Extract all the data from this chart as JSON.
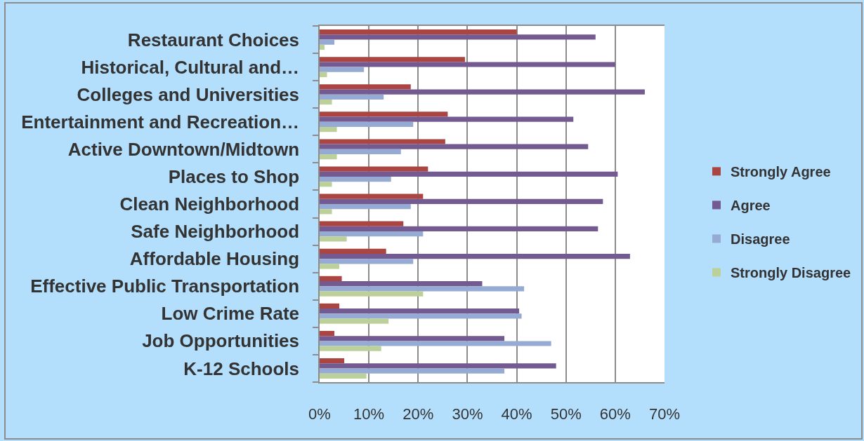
{
  "chart_data": {
    "type": "bar",
    "orientation": "horizontal",
    "categories": [
      "Restaurant Choices",
      "Historical, Cultural and…",
      "Colleges and Universities",
      "Entertainment and Recreation…",
      "Active Downtown/Midtown",
      "Places to Shop",
      "Clean Neighborhood",
      "Safe Neighborhood",
      "Affordable Housing",
      "Effective Public Transportation",
      "Low Crime Rate",
      "Job Opportunities",
      "K-12 Schools"
    ],
    "series": [
      {
        "name": "Strongly Agree",
        "color": "#ab4542",
        "values": [
          40,
          29.5,
          18.5,
          26,
          25.5,
          22,
          21,
          17,
          13.5,
          4.5,
          4,
          3,
          5
        ]
      },
      {
        "name": "Agree",
        "color": "#735a91",
        "values": [
          56,
          60,
          66,
          51.5,
          54.5,
          60.5,
          57.5,
          56.5,
          63,
          33,
          40.5,
          37.5,
          48
        ]
      },
      {
        "name": "Disagree",
        "color": "#96abd4",
        "values": [
          3,
          9,
          13,
          19,
          16.5,
          14.5,
          18.5,
          21,
          19,
          41.5,
          41,
          47,
          37.5
        ]
      },
      {
        "name": "Strongly Disagree",
        "color": "#bcd09a",
        "values": [
          1,
          1.5,
          2.5,
          3.5,
          3.5,
          2.5,
          2.5,
          5.5,
          4,
          21,
          14,
          12.5,
          9.5
        ]
      }
    ],
    "xlim": [
      0,
      70
    ],
    "xticks": [
      {
        "value": 0,
        "label": "0%"
      },
      {
        "value": 10,
        "label": "10%"
      },
      {
        "value": 20,
        "label": "20%"
      },
      {
        "value": 30,
        "label": "30%"
      },
      {
        "value": 40,
        "label": "40%"
      },
      {
        "value": 50,
        "label": "50%"
      },
      {
        "value": 60,
        "label": "60%"
      },
      {
        "value": 70,
        "label": "70%"
      }
    ],
    "grid": "x",
    "legend": "right"
  }
}
